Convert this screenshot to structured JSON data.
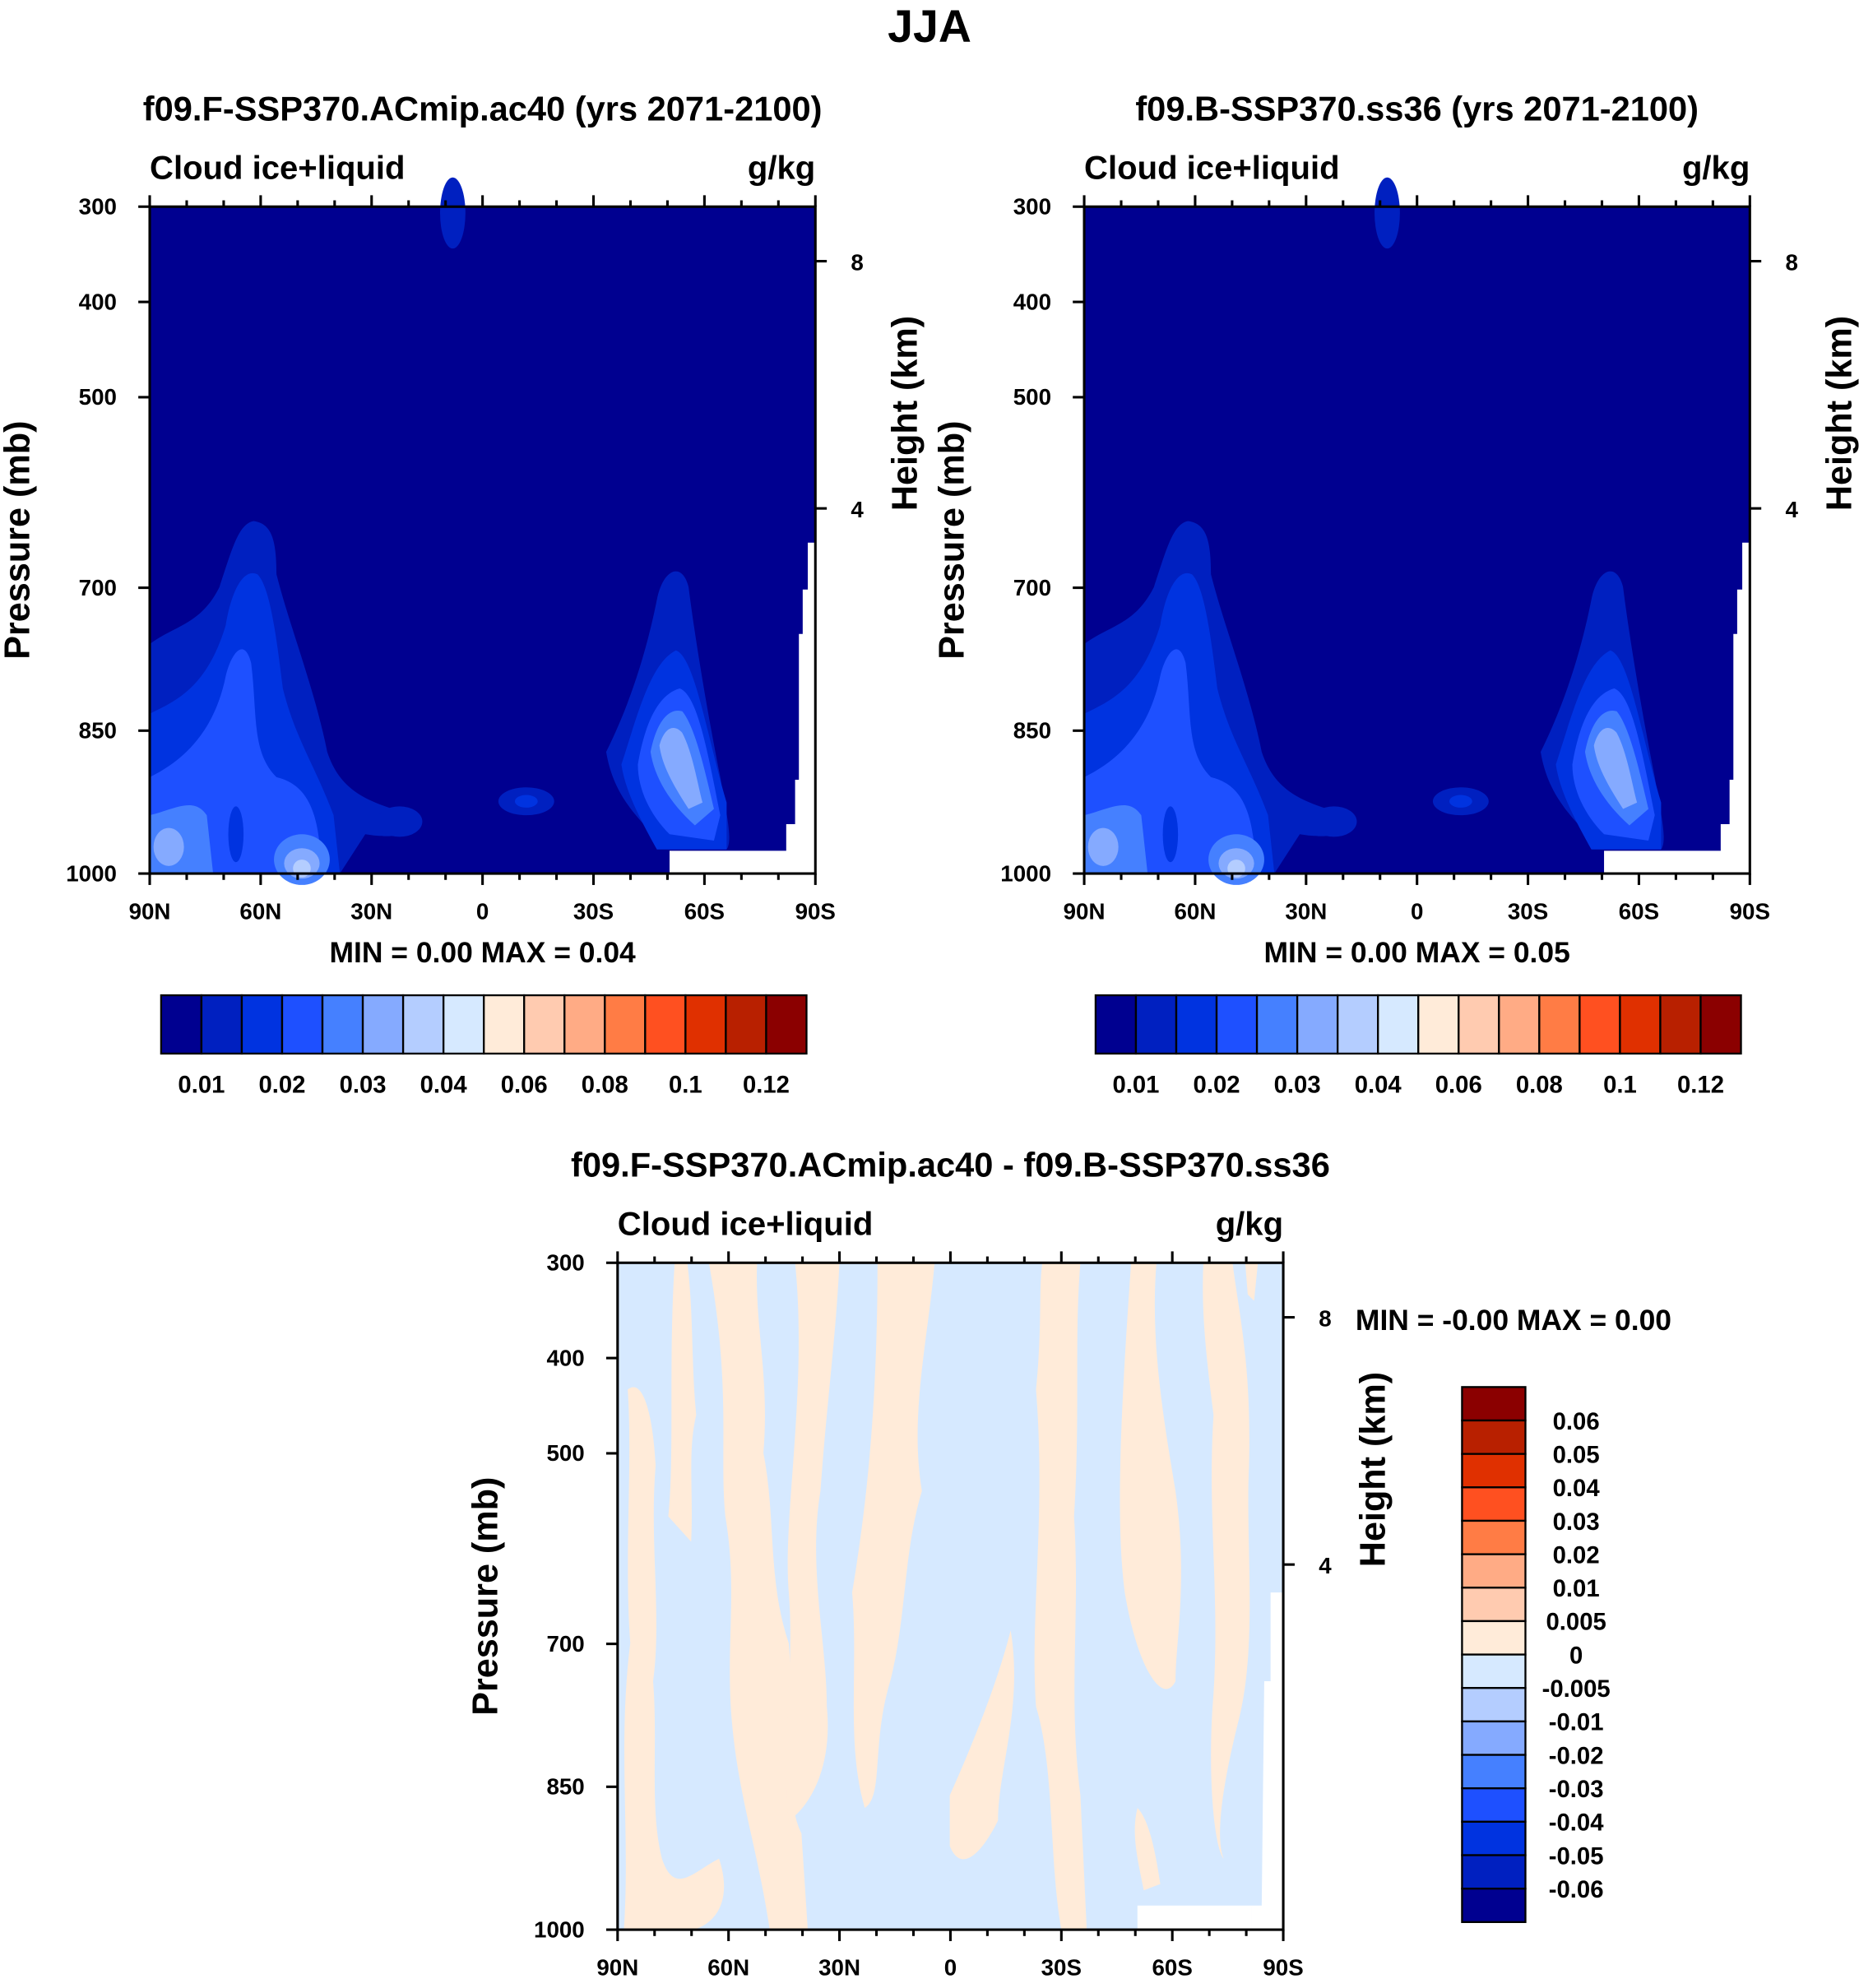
{
  "main_title": "JJA",
  "colors": [
    "#000090",
    "#0020C0",
    "#0033E0",
    "#1E50FF",
    "#4580FF",
    "#85AAFF",
    "#B4CDFF",
    "#D6E9FF",
    "#FFEBD9",
    "#FFCBB0",
    "#FFAB85",
    "#FF7C45",
    "#FF5020",
    "#E03000",
    "#B82000",
    "#8B0000"
  ],
  "chart_data": [
    {
      "type": "heatmap",
      "title": "f09.F-SSP370.ACmip.ac40 (yrs 2071-2100)",
      "left_label": "Cloud ice+liquid",
      "units": "g/kg",
      "ylabel": "Pressure (mb)",
      "ylabel_right": "Height (km)",
      "xticks": [
        "90N",
        "60N",
        "30N",
        "0",
        "30S",
        "60S",
        "90S"
      ],
      "yticks": [
        300,
        400,
        500,
        700,
        850,
        1000
      ],
      "ylim": [
        300,
        1000
      ],
      "height_ticks": [
        "8",
        "4"
      ],
      "stats": "MIN =   0.00  MAX =   0.04",
      "colorbar_labels": [
        "0.01",
        "0.02",
        "0.03",
        "0.04",
        "0.06",
        "0.08",
        "0.1",
        "0.12"
      ]
    },
    {
      "type": "heatmap",
      "title": "f09.B-SSP370.ss36 (yrs 2071-2100)",
      "left_label": "Cloud ice+liquid",
      "units": "g/kg",
      "ylabel": "Pressure (mb)",
      "ylabel_right": "Height (km)",
      "xticks": [
        "90N",
        "60N",
        "30N",
        "0",
        "30S",
        "60S",
        "90S"
      ],
      "yticks": [
        300,
        400,
        500,
        700,
        850,
        1000
      ],
      "ylim": [
        300,
        1000
      ],
      "height_ticks": [
        "8",
        "4"
      ],
      "stats": "MIN =   0.00  MAX =   0.05",
      "colorbar_labels": [
        "0.01",
        "0.02",
        "0.03",
        "0.04",
        "0.06",
        "0.08",
        "0.1",
        "0.12"
      ]
    },
    {
      "type": "heatmap",
      "title": "f09.F-SSP370.ACmip.ac40 - f09.B-SSP370.ss36",
      "left_label": "Cloud ice+liquid",
      "units": "g/kg",
      "ylabel": "Pressure (mb)",
      "ylabel_right": "Height (km)",
      "xticks": [
        "90N",
        "60N",
        "30N",
        "0",
        "30S",
        "60S",
        "90S"
      ],
      "yticks": [
        300,
        400,
        500,
        700,
        850,
        1000
      ],
      "ylim": [
        300,
        1000
      ],
      "height_ticks": [
        "8",
        "4"
      ],
      "stats": "MIN =  -0.00  MAX =   0.00",
      "colorbar_labels": [
        "0.06",
        "0.05",
        "0.04",
        "0.03",
        "0.02",
        "0.01",
        "0.005",
        "0",
        "-0.005",
        "-0.01",
        "-0.02",
        "-0.03",
        "-0.04",
        "-0.05",
        "-0.06"
      ]
    }
  ]
}
